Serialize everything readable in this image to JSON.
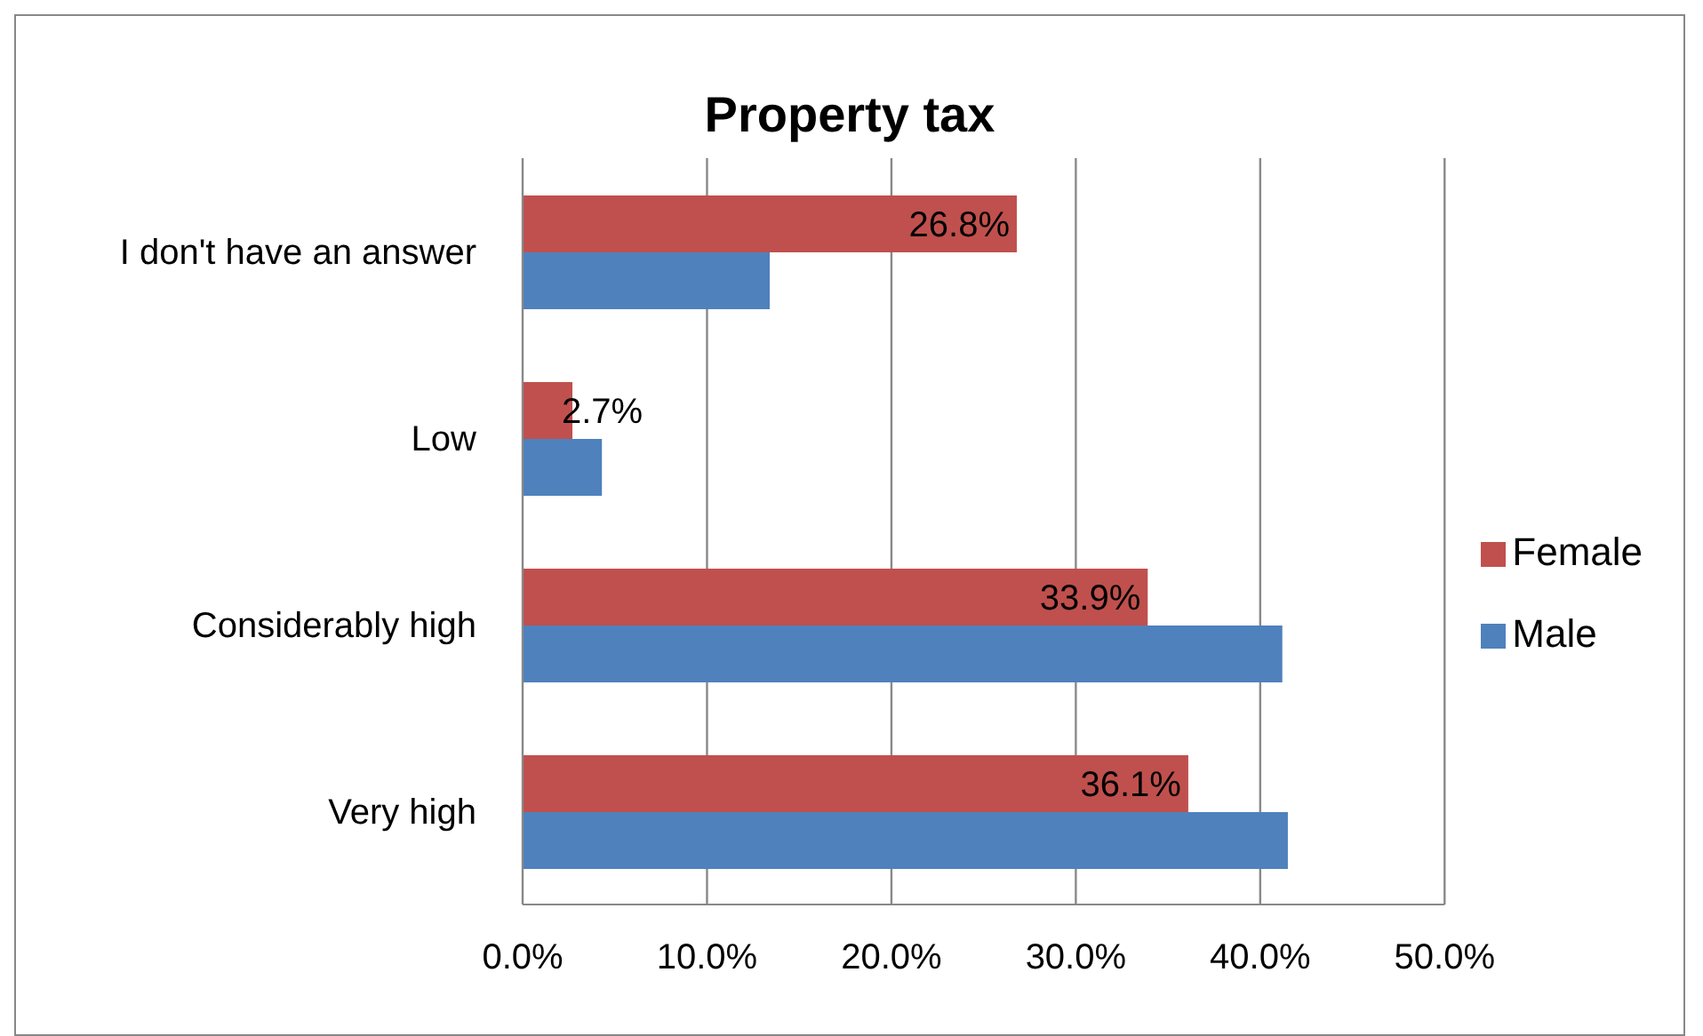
{
  "chart_data": {
    "type": "bar",
    "orientation": "horizontal",
    "title": "Property tax",
    "categories": [
      "I don't have an answer",
      "Low",
      "Considerably high",
      "Very high"
    ],
    "series": [
      {
        "name": "Female",
        "color": "#c0504d",
        "values": [
          26.8,
          2.7,
          33.9,
          36.1
        ],
        "value_labels": [
          "26.8%",
          "2.7%",
          "33.9%",
          "36.1%"
        ]
      },
      {
        "name": "Male",
        "color": "#4f81bd",
        "values": [
          13.4,
          4.3,
          41.2,
          41.5
        ]
      }
    ],
    "xlim": [
      0,
      50
    ],
    "xticks": [
      {
        "value": 0,
        "label": "0.0%"
      },
      {
        "value": 10,
        "label": "10.0%"
      },
      {
        "value": 20,
        "label": "20.0%"
      },
      {
        "value": 30,
        "label": "30.0%"
      },
      {
        "value": 40,
        "label": "40.0%"
      },
      {
        "value": 50,
        "label": "50.0%"
      }
    ],
    "grid": "x",
    "legend": "right"
  }
}
